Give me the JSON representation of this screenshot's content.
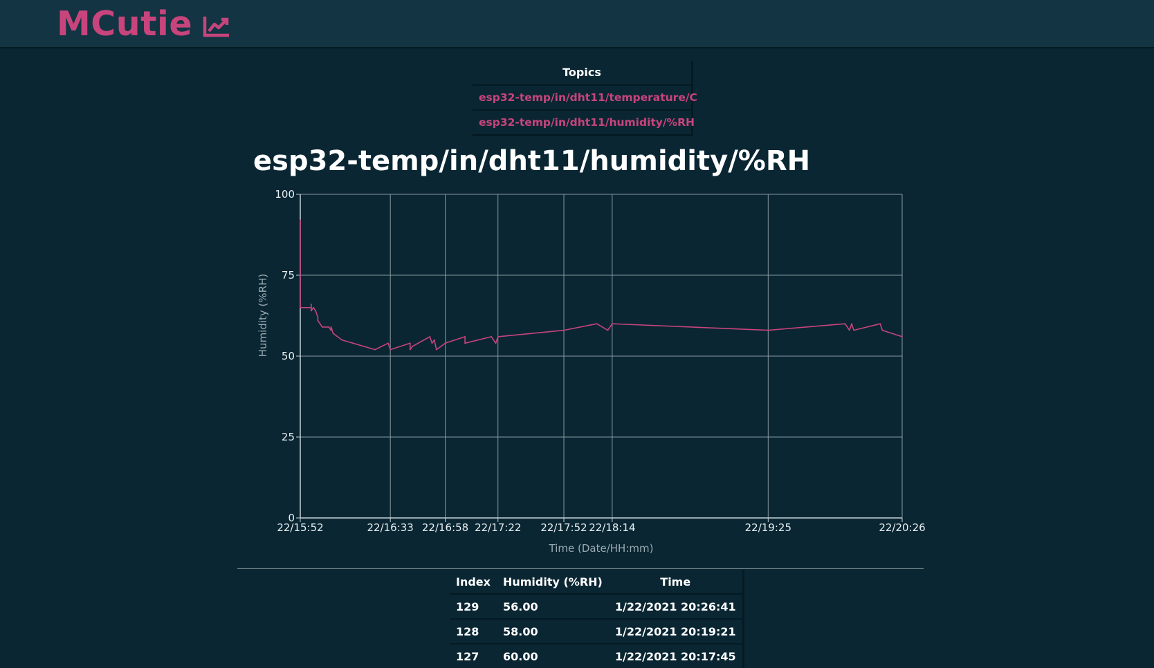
{
  "app": {
    "brand": "MCutie",
    "brand_icon": "trend-chart-icon",
    "accent_color": "#c8447c",
    "background_color": "#0a2633",
    "header_color": "#133442"
  },
  "topics": {
    "header": "Topics",
    "items": [
      {
        "label": "esp32-temp/in/dht11/temperature/C"
      },
      {
        "label": "esp32-temp/in/dht11/humidity/%RH"
      }
    ]
  },
  "chart_data": {
    "type": "line",
    "title": "esp32-temp/in/dht11/humidity/%RH",
    "xlabel": "Time (Date/HH:mm)",
    "ylabel": "Humidity (%RH)",
    "ylim": [
      0,
      100
    ],
    "yticks": [
      0,
      25,
      50,
      75,
      100
    ],
    "xlim": [
      "22/15:52",
      "22/20:26"
    ],
    "xticks": [
      "22/15:52",
      "22/16:33",
      "22/16:58",
      "22/17:22",
      "22/17:52",
      "22/18:14",
      "22/19:25",
      "22/20:26"
    ],
    "grid": true,
    "line_color": "#c8447c",
    "series": [
      {
        "x": [
          "22/15:52",
          "22/15:52",
          "22/15:53",
          "22/15:55",
          "22/15:57",
          "22/15:57",
          "22/15:57",
          "22/15:58",
          "22/15:59",
          "22/15:59",
          "22/16:00",
          "22/16:00",
          "22/16:01",
          "22/16:02",
          "22/16:05",
          "22/16:06",
          "22/16:06",
          "22/16:07",
          "22/16:11",
          "22/16:26",
          "22/16:32",
          "22/16:33",
          "22/16:42",
          "22/16:42",
          "22/16:43",
          "22/16:51",
          "22/16:52",
          "22/16:53",
          "22/16:54",
          "22/16:54",
          "22/16:58",
          "22/17:07",
          "22/17:07",
          "22/17:19",
          "22/17:21",
          "22/17:22",
          "22/17:52",
          "22/18:07",
          "22/18:12",
          "22/18:14",
          "22/19:25",
          "22/20:00",
          "22/20:02",
          "22/20:03",
          "22/20:04",
          "22/20:16",
          "22/20:17",
          "22/20:26"
        ],
        "values": [
          92,
          65,
          65,
          65,
          65,
          66,
          64,
          65,
          64,
          64,
          62,
          61,
          60,
          59,
          59,
          58,
          59,
          57,
          55,
          52,
          54,
          52,
          54,
          52,
          53,
          56,
          54,
          55,
          52,
          52,
          54,
          56,
          54,
          56,
          54,
          56,
          58,
          60,
          58,
          60,
          58,
          60,
          58,
          60,
          58,
          60,
          58,
          56
        ]
      }
    ]
  },
  "table": {
    "columns": [
      "Index",
      "Humidity (%RH)",
      "Time"
    ],
    "rows": [
      [
        "129",
        "56.00",
        "1/22/2021 20:26:41"
      ],
      [
        "128",
        "58.00",
        "1/22/2021 20:19:21"
      ],
      [
        "127",
        "60.00",
        "1/22/2021 20:17:45"
      ]
    ]
  }
}
